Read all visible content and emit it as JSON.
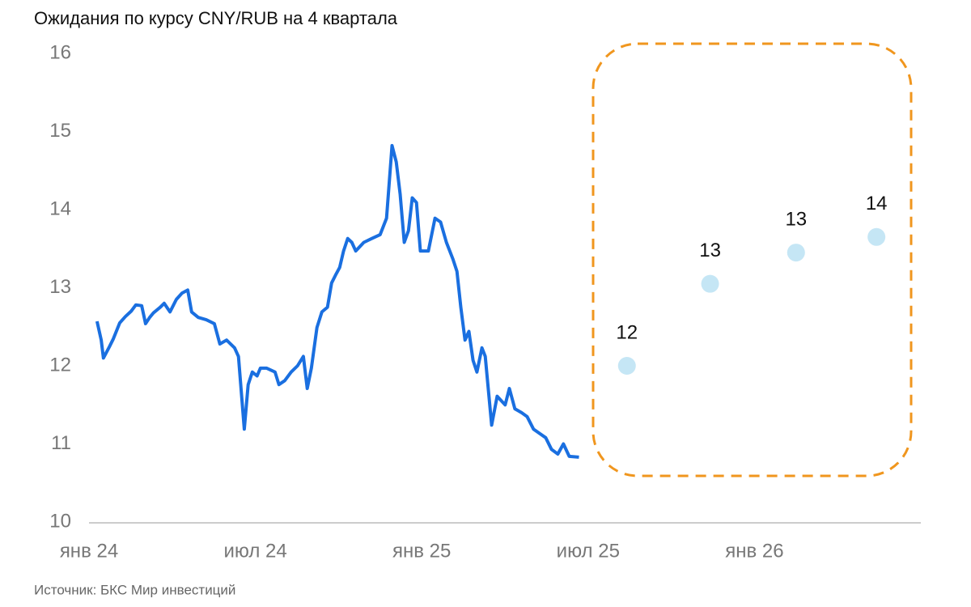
{
  "chart_data": {
    "type": "line",
    "title": "Ожидания по курсу CNY/RUB на 4 квартала",
    "source": "Источник: БКС Мир инвестиций",
    "xlim": [
      0,
      30
    ],
    "xticks": [
      {
        "value": 0,
        "label": "янв 24"
      },
      {
        "value": 6,
        "label": "июл 24"
      },
      {
        "value": 12,
        "label": "янв 25"
      },
      {
        "value": 18,
        "label": "июл 25"
      },
      {
        "value": 24,
        "label": "янв 26"
      }
    ],
    "ylim": [
      10,
      16
    ],
    "yticks": [
      10,
      11,
      12,
      13,
      14,
      15,
      16
    ],
    "grid": false,
    "series": [
      {
        "type": "line",
        "color": "#1a6fe0",
        "x": [
          0.29,
          0.44,
          0.52,
          0.73,
          0.87,
          1.11,
          1.31,
          1.52,
          1.69,
          1.9,
          2.04,
          2.19,
          2.33,
          2.57,
          2.71,
          2.92,
          3.15,
          3.35,
          3.56,
          3.7,
          3.94,
          4.23,
          4.52,
          4.72,
          4.96,
          5.25,
          5.39,
          5.6,
          5.74,
          5.89,
          6.06,
          6.18,
          6.41,
          6.71,
          6.85,
          7.06,
          7.29,
          7.52,
          7.73,
          7.87,
          8.02,
          8.22,
          8.4,
          8.6,
          8.75,
          8.89,
          9.04,
          9.18,
          9.33,
          9.48,
          9.62,
          9.91,
          10.2,
          10.5,
          10.73,
          10.93,
          11.08,
          11.22,
          11.37,
          11.52,
          11.66,
          11.81,
          11.95,
          12.24,
          12.48,
          12.68,
          12.89,
          13.12,
          13.27,
          13.41,
          13.56,
          13.7,
          13.85,
          13.99,
          14.17,
          14.29,
          14.52,
          14.72,
          15.01,
          15.16,
          15.36,
          15.6,
          15.8,
          16.03,
          16.27,
          16.47,
          16.68,
          16.91,
          17.11,
          17.32,
          17.67
        ],
        "values": [
          12.57,
          12.33,
          12.1,
          12.24,
          12.34,
          12.55,
          12.63,
          12.7,
          12.78,
          12.77,
          12.54,
          12.62,
          12.68,
          12.75,
          12.8,
          12.69,
          12.85,
          12.93,
          12.97,
          12.69,
          12.62,
          12.59,
          12.54,
          12.28,
          12.33,
          12.23,
          12.12,
          11.19,
          11.76,
          11.92,
          11.87,
          11.97,
          11.97,
          11.92,
          11.76,
          11.81,
          11.92,
          12.0,
          12.12,
          11.71,
          11.97,
          12.49,
          12.69,
          12.75,
          13.06,
          13.16,
          13.26,
          13.47,
          13.63,
          13.58,
          13.47,
          13.58,
          13.63,
          13.68,
          13.89,
          14.82,
          14.61,
          14.2,
          13.58,
          13.73,
          14.15,
          14.09,
          13.47,
          13.47,
          13.89,
          13.84,
          13.58,
          13.37,
          13.21,
          12.75,
          12.33,
          12.44,
          12.07,
          11.92,
          12.23,
          12.12,
          11.24,
          11.61,
          11.5,
          11.71,
          11.45,
          11.4,
          11.35,
          11.19,
          11.13,
          11.08,
          10.93,
          10.87,
          11.0,
          10.84,
          10.83
        ]
      },
      {
        "type": "scatter",
        "color": "#c5e6f5",
        "x": [
          19.4,
          22.4,
          25.5,
          28.4
        ],
        "values": [
          12.0,
          13.05,
          13.45,
          13.65
        ],
        "value_labels": [
          "12",
          "13",
          "13",
          "14"
        ]
      }
    ]
  }
}
